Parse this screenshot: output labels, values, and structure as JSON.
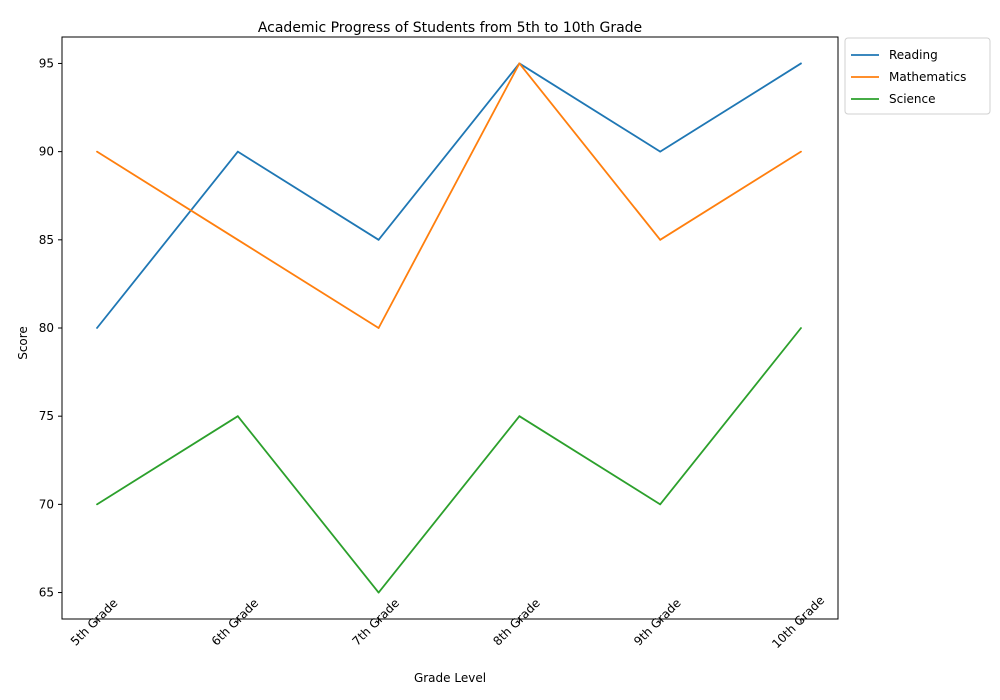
{
  "chart_data": {
    "type": "line",
    "title": "Academic Progress of Students from 5th to 10th Grade",
    "xlabel": "Grade Level",
    "ylabel": "Score",
    "categories": [
      "5th Grade",
      "6th Grade",
      "7th Grade",
      "8th Grade",
      "9th Grade",
      "10th Grade"
    ],
    "ylim": [
      63.5,
      96.5
    ],
    "yticks": [
      65,
      70,
      75,
      80,
      85,
      90,
      95
    ],
    "grid": false,
    "legend_position": "outside-top-right",
    "series": [
      {
        "name": "Reading",
        "color": "#1f77b4",
        "values": [
          80,
          90,
          85,
          95,
          90,
          95
        ]
      },
      {
        "name": "Mathematics",
        "color": "#ff7f0e",
        "values": [
          90,
          85,
          80,
          95,
          85,
          90
        ]
      },
      {
        "name": "Science",
        "color": "#2ca02c",
        "values": [
          70,
          75,
          65,
          75,
          70,
          80
        ]
      }
    ]
  }
}
